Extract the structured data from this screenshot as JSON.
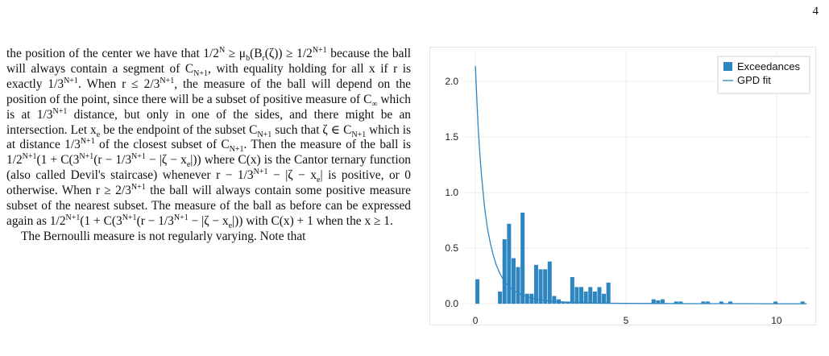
{
  "page": {
    "number": "4"
  },
  "text": {
    "p1_a": "the position of the center we have that 1/2",
    "p1_b": " ≥ μ",
    "p1_c": "(B",
    "p1_d": "(ζ)) ≥ 1/2",
    "p1_e": " because the ball will always contain a segment of C",
    "p1_f": ", with equality holding for all x if r is exactly 1/3",
    "p1_g": ". When r ≤ 2/3",
    "p1_h": ", the measure of the ball will depend on the position of the point, since there will be a subset of positive measure of C",
    "p1_i": " which is at 1/3",
    "p1_j": " distance, but only in one of the sides, and there might be an intersection. Let x",
    "p1_k": " be the endpoint of the subset C",
    "p1_l": " such that ζ ∈ C",
    "p1_m": " which is at distance 1/3",
    "p1_n": " of the closest subset of C",
    "p1_o": ". Then the measure of the ball is 1/2",
    "p1_p": "(1 + C(3",
    "p1_q": "(r − 1/3",
    "p1_r": " − |ζ − x",
    "p1_s": "|)) where C(x) is the Cantor ternary function (also called Devil's staircase) whenever r − 1/3",
    "p1_t": " − |ζ − x",
    "p1_u": "| is positive, or 0 otherwise. When r ≥ 2/3",
    "p1_v": " the ball will always contain some positive measure subset of the nearest subset. The measure of the ball as before can be expressed again as 1/2",
    "p1_w": "(1 + C(3",
    "p1_x": "(r − 1/3",
    "p1_y": " − |ζ − x",
    "p1_z": "|)) with C(x) + 1 when the x ≥ 1.",
    "p2": "The Bernoulli measure is not regularly varying. Note that",
    "sup_N": "N",
    "sup_N1": "N+1",
    "sub_b": "b",
    "sub_r": "r",
    "sub_N1": "N+1",
    "sub_inf": "∞",
    "sub_e": "e"
  },
  "chart_data": {
    "type": "bar",
    "x_ticks": [
      0,
      5,
      10
    ],
    "y_ticks": [
      0.0,
      0.5,
      1.0,
      1.5,
      2.0
    ],
    "xlim": [
      -0.35,
      11.1
    ],
    "ylim": [
      -0.05,
      2.27
    ],
    "grid": true,
    "legend_position": "top-right",
    "series": [
      {
        "name": "Exceedances",
        "type": "histogram",
        "color": "#2e86c1",
        "bin_width": 0.15,
        "bins": [
          {
            "x": 0.0,
            "h": 0.22
          },
          {
            "x": 0.75,
            "h": 0.11
          },
          {
            "x": 0.9,
            "h": 0.58
          },
          {
            "x": 1.05,
            "h": 0.72
          },
          {
            "x": 1.2,
            "h": 0.41
          },
          {
            "x": 1.35,
            "h": 0.33
          },
          {
            "x": 1.5,
            "h": 0.82
          },
          {
            "x": 1.65,
            "h": 0.09
          },
          {
            "x": 1.8,
            "h": 0.09
          },
          {
            "x": 1.95,
            "h": 0.35
          },
          {
            "x": 2.1,
            "h": 0.31
          },
          {
            "x": 2.25,
            "h": 0.31
          },
          {
            "x": 2.4,
            "h": 0.38
          },
          {
            "x": 2.55,
            "h": 0.07
          },
          {
            "x": 2.7,
            "h": 0.04
          },
          {
            "x": 2.85,
            "h": 0.02
          },
          {
            "x": 3.0,
            "h": 0.02
          },
          {
            "x": 3.15,
            "h": 0.24
          },
          {
            "x": 3.3,
            "h": 0.15
          },
          {
            "x": 3.45,
            "h": 0.15
          },
          {
            "x": 3.6,
            "h": 0.11
          },
          {
            "x": 3.75,
            "h": 0.15
          },
          {
            "x": 3.9,
            "h": 0.11
          },
          {
            "x": 4.05,
            "h": 0.15
          },
          {
            "x": 4.2,
            "h": 0.09
          },
          {
            "x": 4.35,
            "h": 0.19
          },
          {
            "x": 5.85,
            "h": 0.04
          },
          {
            "x": 6.0,
            "h": 0.03
          },
          {
            "x": 6.15,
            "h": 0.04
          },
          {
            "x": 6.6,
            "h": 0.02
          },
          {
            "x": 6.75,
            "h": 0.02
          },
          {
            "x": 7.5,
            "h": 0.02
          },
          {
            "x": 7.65,
            "h": 0.02
          },
          {
            "x": 8.1,
            "h": 0.02
          },
          {
            "x": 8.4,
            "h": 0.02
          },
          {
            "x": 9.9,
            "h": 0.02
          },
          {
            "x": 10.8,
            "h": 0.02
          }
        ]
      },
      {
        "name": "GPD fit",
        "type": "line",
        "color": "#2e86c1",
        "x": [
          0,
          0.05,
          0.1,
          0.15,
          0.2,
          0.3,
          0.4,
          0.5,
          0.6,
          0.7,
          0.8,
          0.9,
          1.0,
          1.2,
          1.4,
          1.6,
          1.8,
          2.0,
          2.3,
          2.6,
          3.0,
          3.5,
          4.0,
          5.0,
          6.0,
          7.0,
          8.0,
          9.0,
          10.0,
          11.0
        ],
        "y": [
          2.14,
          1.82,
          1.55,
          1.34,
          1.16,
          0.88,
          0.68,
          0.54,
          0.43,
          0.345,
          0.28,
          0.23,
          0.19,
          0.135,
          0.098,
          0.073,
          0.055,
          0.042,
          0.03,
          0.021,
          0.014,
          0.009,
          0.006,
          0.003,
          0.002,
          0.001,
          0.001,
          0.0005,
          0.0003,
          0.0002
        ]
      }
    ]
  }
}
